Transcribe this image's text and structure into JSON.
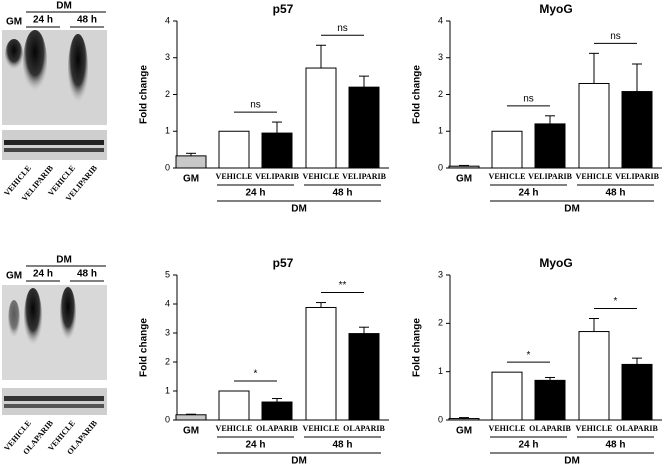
{
  "blots": [
    {
      "header": "DM",
      "left": "GM",
      "times": [
        "24 h",
        "48 h"
      ],
      "lanes": [
        "VEHICLE",
        "VELIPARIB",
        "VEHICLE",
        "VELIPARIB"
      ]
    },
    {
      "header": "DM",
      "left": "GM",
      "times": [
        "24 h",
        "48 h"
      ],
      "lanes": [
        "VEHICLE",
        "OLAPARIB",
        "VEHICLE",
        "OLAPARIB"
      ]
    }
  ],
  "chart_data": [
    {
      "type": "bar",
      "title": "p57",
      "y_label": "Fold change",
      "categories": [
        "GM",
        "VEHICLE",
        "VELIPARIB",
        "VEHICLE",
        "VELIPARIB"
      ],
      "values": [
        0.33,
        1.0,
        0.95,
        2.72,
        2.2
      ],
      "errors": [
        0.07,
        0,
        0.3,
        0.62,
        0.3
      ],
      "colors": [
        "#c8c8c8",
        "#ffffff",
        "#000000",
        "#ffffff",
        "#000000"
      ],
      "group_labels": [
        "24 h",
        "48 h"
      ],
      "group_title": "DM",
      "annotations": [
        "ns",
        "ns"
      ],
      "ylim": [
        0,
        4
      ],
      "yticks": [
        0,
        1,
        2,
        3,
        4
      ]
    },
    {
      "type": "bar",
      "title": "MyoG",
      "y_label": "Fold change",
      "categories": [
        "GM",
        "VEHICLE",
        "VELIPARIB",
        "VEHICLE",
        "VELIPARIB"
      ],
      "values": [
        0.05,
        1.0,
        1.2,
        2.3,
        2.08
      ],
      "errors": [
        0.02,
        0,
        0.22,
        0.82,
        0.75
      ],
      "colors": [
        "#c8c8c8",
        "#ffffff",
        "#000000",
        "#ffffff",
        "#000000"
      ],
      "group_labels": [
        "24 h",
        "48 h"
      ],
      "group_title": "DM",
      "annotations": [
        "ns",
        "ns"
      ],
      "ylim": [
        0,
        4
      ],
      "yticks": [
        0,
        1,
        2,
        3,
        4
      ]
    },
    {
      "type": "bar",
      "title": "p57",
      "y_label": "Fold change",
      "categories": [
        "GM",
        "VEHICLE",
        "OLAPARIB",
        "VEHICLE",
        "OLAPARIB"
      ],
      "values": [
        0.18,
        1.0,
        0.62,
        3.88,
        2.98
      ],
      "errors": [
        0.02,
        0,
        0.12,
        0.17,
        0.22
      ],
      "colors": [
        "#c8c8c8",
        "#ffffff",
        "#000000",
        "#ffffff",
        "#000000"
      ],
      "group_labels": [
        "24 h",
        "48 h"
      ],
      "group_title": "DM",
      "annotations": [
        "*",
        "**"
      ],
      "ylim": [
        0,
        5
      ],
      "yticks": [
        0,
        1,
        2,
        3,
        4,
        5
      ]
    },
    {
      "type": "bar",
      "title": "MyoG",
      "y_label": "Fold change",
      "categories": [
        "GM",
        "VEHICLE",
        "OLAPARIB",
        "VEHICLE",
        "OLAPARIB"
      ],
      "values": [
        0.03,
        0.99,
        0.82,
        1.83,
        1.15
      ],
      "errors": [
        0.02,
        0,
        0.06,
        0.27,
        0.13
      ],
      "colors": [
        "#c8c8c8",
        "#ffffff",
        "#000000",
        "#ffffff",
        "#000000"
      ],
      "group_labels": [
        "24 h",
        "48 h"
      ],
      "group_title": "DM",
      "annotations": [
        "*",
        "*"
      ],
      "ylim": [
        0,
        3
      ],
      "yticks": [
        0,
        1,
        2,
        3
      ]
    }
  ]
}
